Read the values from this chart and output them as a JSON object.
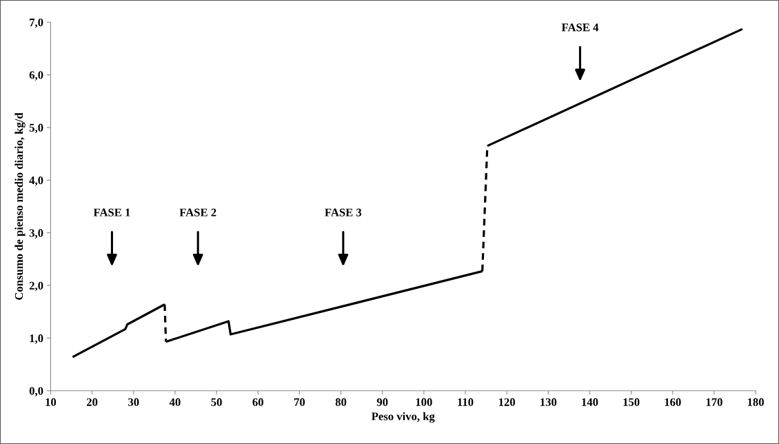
{
  "chart_data": {
    "type": "line",
    "xlabel": "Peso vivo, kg",
    "ylabel": "Consumo de pienso medio diario, kg/d",
    "series": [
      {
        "color": "#000000",
        "line_style": "solid",
        "x": [
          15.3,
          28.0,
          28.5,
          37.5
        ],
        "values": [
          0.64,
          1.17,
          1.26,
          1.64
        ]
      },
      {
        "color": "#000000",
        "line_style": "dashed",
        "x": [
          37.5,
          37.8
        ],
        "values": [
          1.64,
          0.93
        ]
      },
      {
        "color": "#000000",
        "line_style": "solid",
        "x": [
          37.8,
          52.9,
          53.4,
          114.1
        ],
        "values": [
          0.93,
          1.32,
          1.07,
          2.27
        ]
      },
      {
        "color": "#000000",
        "line_style": "dashed",
        "x": [
          114.1,
          115.3
        ],
        "values": [
          2.27,
          4.65
        ]
      },
      {
        "color": "#000000",
        "line_style": "solid",
        "x": [
          115.3,
          176.8
        ],
        "values": [
          4.65,
          6.87
        ]
      }
    ],
    "annotations": [
      "FASE 1",
      "FASE 2",
      "FASE 3",
      "FASE 4"
    ],
    "xlim": [
      10,
      180
    ],
    "xticks": [
      10,
      20,
      30,
      40,
      50,
      60,
      70,
      80,
      90,
      100,
      110,
      120,
      130,
      140,
      150,
      160,
      170,
      180
    ],
    "ylim": [
      0,
      7
    ],
    "yticks": [
      {
        "value": 0,
        "label": "0,0"
      },
      {
        "value": 1,
        "label": "1,0"
      },
      {
        "value": 2,
        "label": "2,0"
      },
      {
        "value": 3,
        "label": "3,0"
      },
      {
        "value": 4,
        "label": "4,0"
      },
      {
        "value": 5,
        "label": "5,0"
      },
      {
        "value": 6,
        "label": "6,0"
      },
      {
        "value": 7,
        "label": "7,0"
      }
    ],
    "grid": false,
    "legend": false,
    "marker": "none"
  }
}
